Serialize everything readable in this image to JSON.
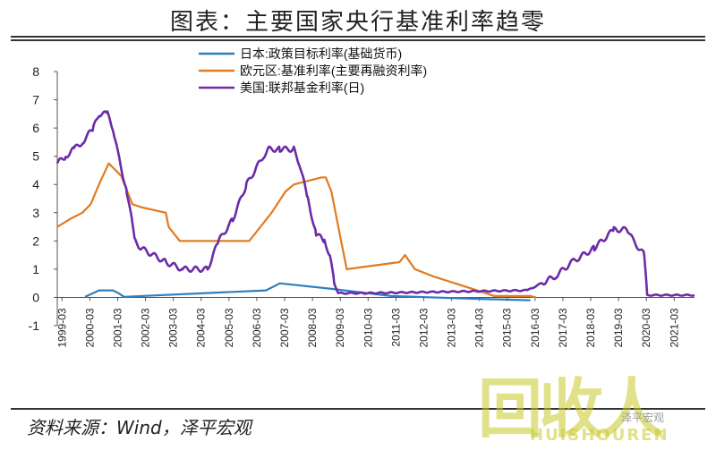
{
  "header": {
    "title": "图表：主要国家央行基准利率趋零"
  },
  "footer": {
    "source": "资料来源：Wind，泽平宏观",
    "wechat": "泽平宏观"
  },
  "watermark": {
    "logo": "回收人",
    "sub": "HUISHOUREN"
  },
  "chart_data": {
    "type": "line",
    "ylim": [
      -1,
      8
    ],
    "yticks": [
      "8",
      "7",
      "6",
      "5",
      "4",
      "3",
      "2",
      "1",
      "0",
      "-1"
    ],
    "xticks": [
      "1999-03",
      "2000-03",
      "2001-03",
      "2002-03",
      "2003-03",
      "2004-03",
      "2005-03",
      "2006-03",
      "2007-03",
      "2008-03",
      "2009-03",
      "2010-03",
      "2011-03",
      "2012-03",
      "2013-03",
      "2014-03",
      "2015-03",
      "2016-03",
      "2017-03",
      "2018-03",
      "2019-03",
      "2020-03",
      "2021-03"
    ],
    "grid": false,
    "legend_position": "top-center",
    "series": [
      {
        "name": "日本:政策目标利率(基础货币)",
        "color": "#2e7fbf",
        "x": [
          2000.0,
          2000.5,
          2000.75,
          2001.0,
          2001.2,
          2001.4,
          2006.5,
          2007.0,
          2008.9,
          2011.0,
          2014.0,
          2016.0
        ],
        "values": [
          0.02,
          0.25,
          0.25,
          0.25,
          0.15,
          0.02,
          0.25,
          0.5,
          0.3,
          0.05,
          -0.05,
          -0.1
        ]
      },
      {
        "name": "欧元区:基准利率(主要再融资利率)",
        "color": "#e07b20",
        "x": [
          1999.0,
          1999.5,
          1999.9,
          2000.2,
          2000.5,
          2000.85,
          2001.1,
          2001.3,
          2001.7,
          2002.0,
          2002.9,
          2003.0,
          2003.4,
          2005.9,
          2006.3,
          2006.7,
          2007.2,
          2007.5,
          2008.5,
          2008.65,
          2008.85,
          2009.1,
          2009.4,
          2011.3,
          2011.5,
          2011.85,
          2012.5,
          2014.4,
          2014.7,
          2016.0,
          2016.2
        ],
        "values": [
          2.5,
          2.8,
          3.0,
          3.3,
          4.0,
          4.75,
          4.5,
          4.3,
          3.3,
          3.2,
          3.0,
          2.5,
          2.0,
          2.0,
          2.5,
          3.0,
          3.75,
          4.0,
          4.25,
          4.25,
          3.75,
          2.5,
          1.0,
          1.25,
          1.5,
          1.0,
          0.75,
          0.15,
          0.05,
          0.05,
          0.0
        ]
      },
      {
        "name": "美国:联邦基金利率(日)",
        "color": "#6a2ca8",
        "x": [
          1999.0,
          1999.3,
          1999.6,
          1999.9,
          2000.3,
          2000.5,
          2000.8,
          2001.0,
          2001.2,
          2001.5,
          2001.8,
          2002.0,
          2002.9,
          2003.5,
          2004.4,
          2004.8,
          2005.3,
          2005.8,
          2006.4,
          2006.6,
          2007.0,
          2007.5,
          2007.7,
          2008.0,
          2008.3,
          2008.6,
          2008.8,
          2008.95,
          2009.1,
          2010.0,
          2015.9,
          2016.9,
          2017.5,
          2018.3,
          2019.0,
          2019.5,
          2019.7,
          2020.1,
          2020.2,
          2021.9
        ],
        "values": [
          4.75,
          5.0,
          5.25,
          5.5,
          6.0,
          6.5,
          6.5,
          6.0,
          5.0,
          3.75,
          2.0,
          1.75,
          1.25,
          1.0,
          1.0,
          2.0,
          2.75,
          4.0,
          5.0,
          5.25,
          5.25,
          5.25,
          4.75,
          3.5,
          2.25,
          2.0,
          1.5,
          0.5,
          0.15,
          0.15,
          0.25,
          0.75,
          1.25,
          1.75,
          2.4,
          2.4,
          2.0,
          1.5,
          0.08,
          0.08
        ]
      }
    ]
  }
}
